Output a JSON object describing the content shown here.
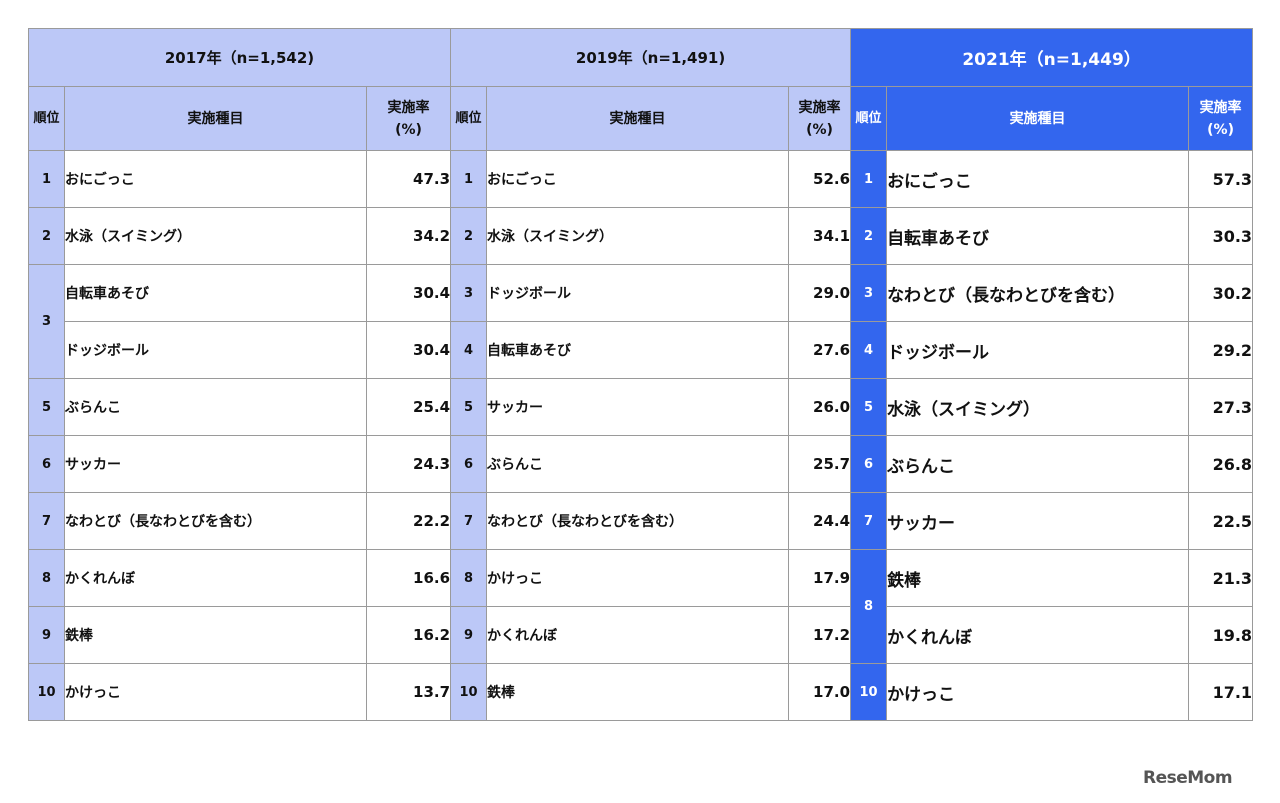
{
  "headers": {
    "rank": "順位",
    "item": "実施種目",
    "rate_line1": "実施率",
    "rate_line2": "(%)"
  },
  "years": [
    {
      "label": "2017年（n=1,542)",
      "rows": [
        {
          "rank": "1",
          "item": "おにごっこ",
          "value": "47.3"
        },
        {
          "rank": "2",
          "item": "水泳（スイミング）",
          "value": "34.2"
        },
        {
          "rank": "3",
          "item": "自転車あそび",
          "value": "30.4"
        },
        {
          "rank": "",
          "item": "ドッジボール",
          "value": "30.4"
        },
        {
          "rank": "5",
          "item": "ぶらんこ",
          "value": "25.4"
        },
        {
          "rank": "6",
          "item": "サッカー",
          "value": "24.3"
        },
        {
          "rank": "7",
          "item": "なわとび（長なわとびを含む）",
          "value": "22.2"
        },
        {
          "rank": "8",
          "item": "かくれんぼ",
          "value": "16.6"
        },
        {
          "rank": "9",
          "item": "鉄棒",
          "value": "16.2"
        },
        {
          "rank": "10",
          "item": "かけっこ",
          "value": "13.7"
        }
      ]
    },
    {
      "label": "2019年（n=1,491)",
      "rows": [
        {
          "rank": "1",
          "item": "おにごっこ",
          "value": "52.6"
        },
        {
          "rank": "2",
          "item": "水泳（スイミング）",
          "value": "34.1"
        },
        {
          "rank": "3",
          "item": "ドッジボール",
          "value": "29.0"
        },
        {
          "rank": "4",
          "item": "自転車あそび",
          "value": "27.6"
        },
        {
          "rank": "5",
          "item": "サッカー",
          "value": "26.0"
        },
        {
          "rank": "6",
          "item": "ぶらんこ",
          "value": "25.7"
        },
        {
          "rank": "7",
          "item": "なわとび（長なわとびを含む）",
          "value": "24.4"
        },
        {
          "rank": "8",
          "item": "かけっこ",
          "value": "17.9"
        },
        {
          "rank": "9",
          "item": "かくれんぼ",
          "value": "17.2"
        },
        {
          "rank": "10",
          "item": "鉄棒",
          "value": "17.0"
        }
      ]
    },
    {
      "label": "2021年（n=1,449）",
      "rows": [
        {
          "rank": "1",
          "item": "おにごっこ",
          "value": "57.3"
        },
        {
          "rank": "2",
          "item": "自転車あそび",
          "value": "30.3"
        },
        {
          "rank": "3",
          "item": "なわとび（長なわとびを含む）",
          "value": "30.2"
        },
        {
          "rank": "4",
          "item": "ドッジボール",
          "value": "29.2"
        },
        {
          "rank": "5",
          "item": "水泳（スイミング）",
          "value": "27.3"
        },
        {
          "rank": "6",
          "item": "ぶらんこ",
          "value": "26.8"
        },
        {
          "rank": "7",
          "item": "サッカー",
          "value": "22.5"
        },
        {
          "rank": "8",
          "item": "鉄棒",
          "value": "21.3"
        },
        {
          "rank": "",
          "item": "かくれんぼ",
          "value": "19.8"
        },
        {
          "rank": "10",
          "item": "かけっこ",
          "value": "17.1"
        }
      ]
    }
  ],
  "colors": {
    "header_light": "#bcc8f7",
    "header_current": "#3366ee"
  },
  "logo": "ReseMom"
}
